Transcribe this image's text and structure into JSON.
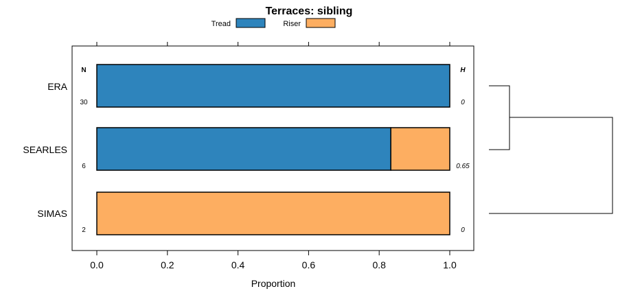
{
  "chart_data": {
    "type": "bar",
    "orientation": "horizontal",
    "stacked": true,
    "title": "Terraces: sibling",
    "xlabel": "Proportion",
    "ylabel": "",
    "xlim": [
      0,
      1
    ],
    "x_ticks": [
      "0.0",
      "0.2",
      "0.4",
      "0.6",
      "0.8",
      "1.0"
    ],
    "categories": [
      "ERA",
      "SEARLES",
      "SIMAS"
    ],
    "series": [
      {
        "name": "Tread",
        "color": "#2e84bc",
        "values": [
          1.0,
          0.833,
          0.0
        ]
      },
      {
        "name": "Riser",
        "color": "#fdae61",
        "values": [
          0.0,
          0.167,
          1.0
        ]
      }
    ],
    "n_header": "N",
    "n_values": [
      "30",
      "6",
      "2"
    ],
    "h_header": "H",
    "h_values": [
      "0",
      "0.65",
      "0"
    ],
    "legend_position": "top",
    "dendrogram": {
      "merges": [
        [
          "ERA",
          "SEARLES"
        ],
        [
          "ERA-SEARLES",
          "SIMAS"
        ]
      ]
    }
  }
}
